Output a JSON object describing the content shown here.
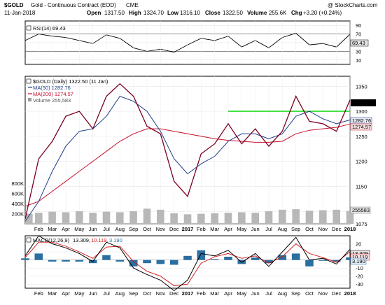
{
  "header": {
    "symbol": "$GOLD",
    "name": "Gold - Continuous Contract (EOD)",
    "exchange": "CME",
    "watermark": "@ StockCharts.com",
    "date": "11-Jan-2018",
    "open_label": "Open",
    "open": "1317.50",
    "high_label": "High",
    "high": "1324.70",
    "low_label": "Low",
    "low": "1316.10",
    "close_label": "Close",
    "close": "1322.50",
    "volume_label": "Volume",
    "volume": "255.6K",
    "chg_label": "Chg",
    "chg": "+3.20 (+0.24%)"
  },
  "rsi_panel": {
    "legend": "RSI(14) 69.43",
    "value_tag": "69.43",
    "ticks": [
      90,
      70,
      50,
      30,
      10
    ],
    "ylim": [
      0,
      100
    ],
    "line_color": "#000000"
  },
  "price_panel": {
    "legend_main": "$GOLD (Daily) 1322.50 (11 Jan)",
    "legend_ma50": "MA(50) 1282.76",
    "legend_ma200": "MA(200) 1274.57",
    "legend_volume": "Volume 255,583",
    "ticks": [
      1075,
      1100,
      1150,
      1200,
      1250,
      1300,
      1350
    ],
    "volume_ticks": [
      "800K",
      "600K",
      "400K",
      "200K"
    ],
    "price_tag": "1322.50",
    "ma50_tag": "1282.76",
    "ma200_tag": "1274.57",
    "volume_tag": "255583",
    "colors": {
      "price": "#7a0020",
      "ma50": "#1f3d8a",
      "ma200": "#c8102e",
      "volume": "#b0b0b0",
      "resistance": "#22dd22"
    }
  },
  "macd_panel": {
    "legend_title": "MACD(12,26,9)",
    "legend_macd": "13.309,",
    "legend_signal": "10.119,",
    "legend_hist": "3.190",
    "ticks": [
      20,
      10,
      0,
      -10,
      -20,
      -30
    ],
    "macd_tag": "13.309",
    "signal_tag": "10.119",
    "hist_tag": "3.190",
    "colors": {
      "macd": "#000000",
      "signal": "#d01010",
      "hist": "#2a6fa0"
    }
  },
  "x_axis_labels": [
    "Feb",
    "Mar",
    "Apr",
    "May",
    "Jun",
    "Jul",
    "Aug",
    "Sep",
    "Oct",
    "Nov",
    "Dec",
    "2017",
    "Feb",
    "Mar",
    "Apr",
    "May",
    "Jun",
    "Jul",
    "Aug",
    "Sep",
    "Oct",
    "Nov",
    "Dec",
    "2018"
  ],
  "chart_data": {
    "type": "line",
    "title": "$GOLD Gold - Continuous Contract (EOD) CME",
    "x_months": [
      "2016-01",
      "2016-02",
      "2016-03",
      "2016-04",
      "2016-05",
      "2016-06",
      "2016-07",
      "2016-08",
      "2016-09",
      "2016-10",
      "2016-11",
      "2016-12",
      "2017-01",
      "2017-02",
      "2017-03",
      "2017-04",
      "2017-05",
      "2017-06",
      "2017-07",
      "2017-08",
      "2017-09",
      "2017-10",
      "2017-11",
      "2017-12",
      "2018-01"
    ],
    "price_ylim": [
      1075,
      1370
    ],
    "series": [
      {
        "name": "$GOLD (Daily)",
        "values": [
          1085,
          1205,
          1240,
          1290,
          1300,
          1265,
          1330,
          1355,
          1330,
          1270,
          1255,
          1160,
          1130,
          1215,
          1235,
          1275,
          1235,
          1265,
          1230,
          1260,
          1330,
          1280,
          1275,
          1260,
          1322.5
        ]
      },
      {
        "name": "MA(50)",
        "values": [
          1080,
          1120,
          1180,
          1230,
          1260,
          1265,
          1290,
          1330,
          1320,
          1300,
          1260,
          1205,
          1175,
          1195,
          1210,
          1240,
          1255,
          1255,
          1245,
          1255,
          1290,
          1300,
          1285,
          1275,
          1282.76
        ]
      },
      {
        "name": "MA(200)",
        "values": [
          1110,
          1120,
          1140,
          1160,
          1180,
          1200,
          1220,
          1240,
          1255,
          1265,
          1265,
          1260,
          1255,
          1250,
          1245,
          1242,
          1240,
          1238,
          1238,
          1240,
          1255,
          1262,
          1265,
          1268,
          1274.57
        ]
      }
    ],
    "resistance_level": 1300,
    "resistance_from": "2017-04",
    "volume": [
      200000,
      220000,
      240000,
      230000,
      250000,
      220000,
      240000,
      230000,
      250000,
      300000,
      280000,
      210000,
      190000,
      200000,
      210000,
      220000,
      230000,
      220000,
      250000,
      280000,
      290000,
      260000,
      270000,
      280000,
      255583
    ],
    "rsi": [
      55,
      70,
      65,
      62,
      55,
      48,
      68,
      60,
      38,
      30,
      35,
      28,
      45,
      60,
      55,
      65,
      40,
      55,
      38,
      62,
      72,
      45,
      48,
      40,
      69.43
    ],
    "macd": [
      5,
      30,
      20,
      15,
      8,
      -2,
      22,
      15,
      -10,
      -18,
      -25,
      -38,
      -25,
      8,
      5,
      12,
      -3,
      8,
      -8,
      10,
      28,
      0,
      2,
      -5,
      13.309
    ],
    "signal": [
      3,
      22,
      22,
      17,
      10,
      2,
      16,
      17,
      -2,
      -14,
      -20,
      -32,
      -30,
      -4,
      4,
      8,
      2,
      5,
      -4,
      4,
      20,
      8,
      3,
      -3,
      10.119
    ],
    "histogram": [
      2,
      8,
      -2,
      -2,
      -2,
      -4,
      6,
      -2,
      -8,
      -4,
      -5,
      -6,
      5,
      12,
      1,
      4,
      -5,
      3,
      -4,
      6,
      8,
      -8,
      -1,
      -2,
      3.19
    ],
    "macd_ylim": [
      -35,
      30
    ],
    "rsi_ylim": [
      0,
      100
    ]
  }
}
